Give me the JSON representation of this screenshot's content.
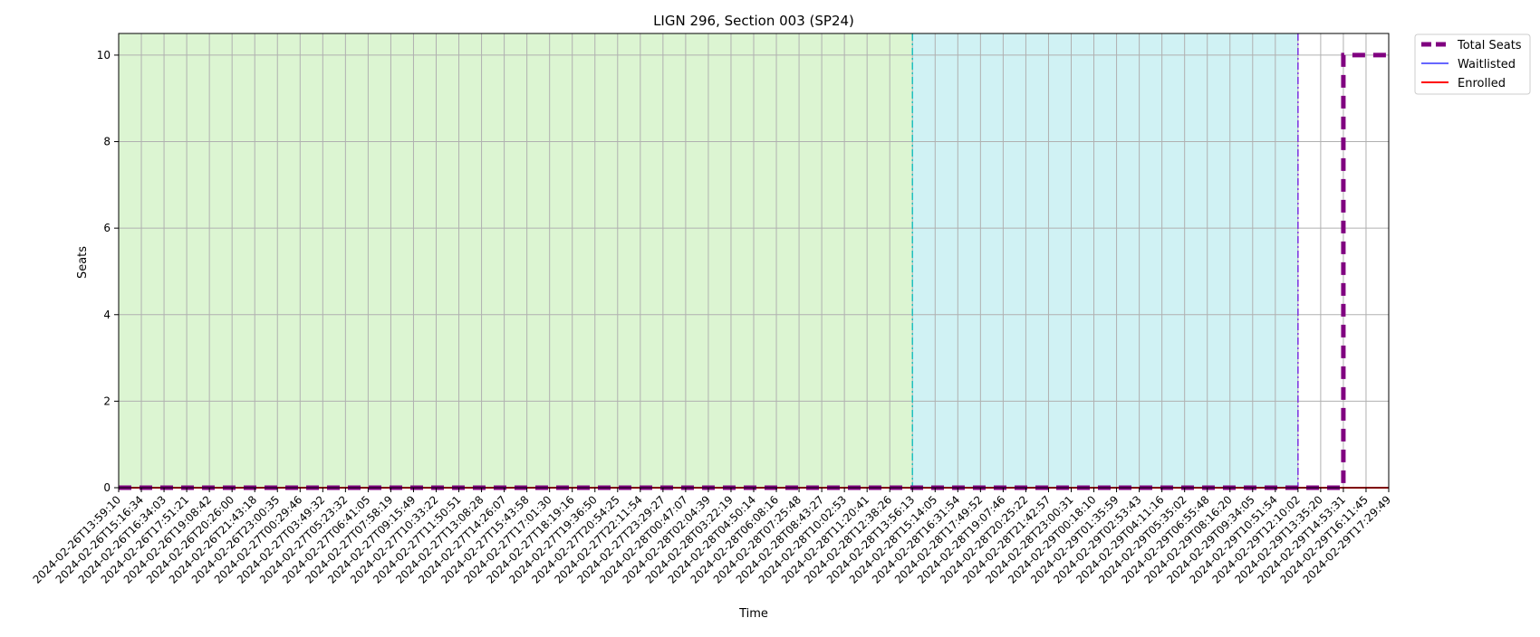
{
  "chart_data": {
    "type": "line",
    "title": "LIGN 296, Section 003 (SP24)",
    "xlabel": "Time",
    "ylabel": "Seats",
    "ylim": [
      0,
      10.5
    ],
    "yticks": [
      0,
      2,
      4,
      6,
      8,
      10
    ],
    "grid": true,
    "legend_position": "outside-top-right",
    "x": [
      "2024-02-26T13:59:10",
      "2024-02-26T15:16:34",
      "2024-02-26T16:34:03",
      "2024-02-26T17:51:21",
      "2024-02-26T19:08:42",
      "2024-02-26T20:26:00",
      "2024-02-26T21:43:18",
      "2024-02-26T23:00:35",
      "2024-02-27T00:29:46",
      "2024-02-27T03:49:32",
      "2024-02-27T05:23:32",
      "2024-02-27T06:41:05",
      "2024-02-27T07:58:19",
      "2024-02-27T09:15:49",
      "2024-02-27T10:33:22",
      "2024-02-27T11:50:51",
      "2024-02-27T13:08:28",
      "2024-02-27T14:26:07",
      "2024-02-27T15:43:58",
      "2024-02-27T17:01:30",
      "2024-02-27T18:19:16",
      "2024-02-27T19:36:50",
      "2024-02-27T20:54:25",
      "2024-02-27T22:11:54",
      "2024-02-27T23:29:27",
      "2024-02-28T00:47:07",
      "2024-02-28T02:04:39",
      "2024-02-28T03:22:19",
      "2024-02-28T04:50:14",
      "2024-02-28T06:08:16",
      "2024-02-28T07:25:48",
      "2024-02-28T08:43:27",
      "2024-02-28T10:02:53",
      "2024-02-28T11:20:41",
      "2024-02-28T12:38:26",
      "2024-02-28T13:56:13",
      "2024-02-28T15:14:05",
      "2024-02-28T16:31:54",
      "2024-02-28T17:49:52",
      "2024-02-28T19:07:46",
      "2024-02-28T20:25:22",
      "2024-02-28T21:42:57",
      "2024-02-28T23:00:31",
      "2024-02-29T00:18:10",
      "2024-02-29T01:35:59",
      "2024-02-29T02:53:43",
      "2024-02-29T04:11:16",
      "2024-02-29T05:35:02",
      "2024-02-29T06:55:48",
      "2024-02-29T08:16:20",
      "2024-02-29T09:34:05",
      "2024-02-29T10:51:54",
      "2024-02-29T12:10:02",
      "2024-02-29T13:35:20",
      "2024-02-29T14:53:31",
      "2024-02-29T16:11:45",
      "2024-02-29T17:29:49"
    ],
    "series": [
      {
        "name": "Total Seats",
        "color": "#800080",
        "style": "dashed-thick",
        "values": [
          0,
          0,
          0,
          0,
          0,
          0,
          0,
          0,
          0,
          0,
          0,
          0,
          0,
          0,
          0,
          0,
          0,
          0,
          0,
          0,
          0,
          0,
          0,
          0,
          0,
          0,
          0,
          0,
          0,
          0,
          0,
          0,
          0,
          0,
          0,
          0,
          0,
          0,
          0,
          0,
          0,
          0,
          0,
          0,
          0,
          0,
          0,
          0,
          0,
          0,
          0,
          0,
          0,
          0,
          10,
          10,
          10
        ]
      },
      {
        "name": "Waitlisted",
        "color": "#3333ff",
        "style": "solid-thin",
        "values": [
          0,
          0,
          0,
          0,
          0,
          0,
          0,
          0,
          0,
          0,
          0,
          0,
          0,
          0,
          0,
          0,
          0,
          0,
          0,
          0,
          0,
          0,
          0,
          0,
          0,
          0,
          0,
          0,
          0,
          0,
          0,
          0,
          0,
          0,
          0,
          0,
          0,
          0,
          0,
          0,
          0,
          0,
          0,
          0,
          0,
          0,
          0,
          0,
          0,
          0,
          0,
          0,
          0,
          0,
          0,
          0,
          0
        ]
      },
      {
        "name": "Enrolled",
        "color": "#ff0000",
        "style": "solid",
        "values": [
          0,
          0,
          0,
          0,
          0,
          0,
          0,
          0,
          0,
          0,
          0,
          0,
          0,
          0,
          0,
          0,
          0,
          0,
          0,
          0,
          0,
          0,
          0,
          0,
          0,
          0,
          0,
          0,
          0,
          0,
          0,
          0,
          0,
          0,
          0,
          0,
          0,
          0,
          0,
          0,
          0,
          0,
          0,
          0,
          0,
          0,
          0,
          0,
          0,
          0,
          0,
          0,
          0,
          0,
          0,
          0,
          0
        ]
      }
    ],
    "regions": [
      {
        "start": "2024-02-26T13:59:10",
        "end": "2024-02-28T13:56:13",
        "color": "#dcf5d2"
      },
      {
        "start": "2024-02-28T13:56:13",
        "end": "2024-02-29T12:10:02",
        "color": "#d0f2f4"
      }
    ],
    "vlines": [
      {
        "at": "2024-02-28T13:56:13",
        "color": "#20c0c0",
        "style": "dashdot"
      },
      {
        "at": "2024-02-29T12:10:02",
        "color": "#7b2fe0",
        "style": "dashdot"
      }
    ]
  }
}
